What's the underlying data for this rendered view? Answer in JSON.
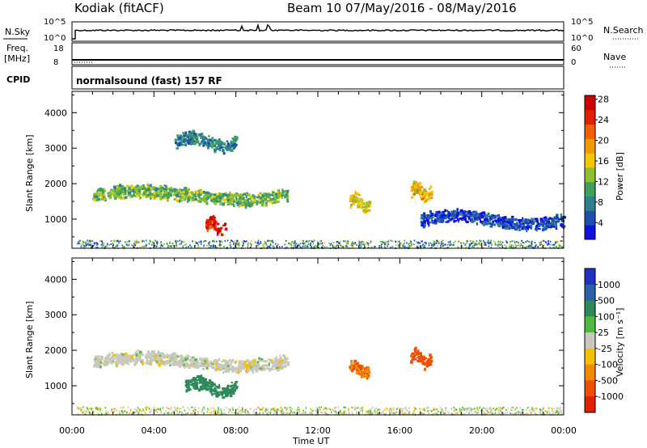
{
  "header": {
    "station": "Kodiak (fitACF)",
    "beam_date": "Beam 10 07/May/2016 - 08/May/2016"
  },
  "top_panels": {
    "nsky_label": "N.Sky",
    "nsearch_label": "N.Search",
    "freq_label_line1": "Freq.",
    "freq_label_line2": "[MHz]",
    "nave_label": "Nave",
    "cpid_label": "CPID",
    "cpid_text": "normalsound (fast) 157 RF",
    "noise_ticks": [
      "10^5",
      "10^0"
    ],
    "freq_ticks": [
      "18",
      "8"
    ],
    "nave_ticks": [
      "60",
      "0"
    ]
  },
  "chart_data": [
    {
      "type": "heatmap",
      "panel": "power",
      "ylabel": "Slant Range [km]",
      "xlabel": "",
      "xlim": [
        "00:00",
        "00:00"
      ],
      "ylim": [
        180,
        4600
      ],
      "y_ticks": [
        1000,
        2000,
        3000,
        4000
      ],
      "colorbar": {
        "label": "Power [dB]",
        "tick_labels": [
          "4",
          "8",
          "12",
          "16",
          "20",
          "24",
          "28"
        ],
        "colors": [
          "#1010e0",
          "#1f4fb0",
          "#2e7f8f",
          "#3f9f5f",
          "#8fbf2f",
          "#f2c800",
          "#f39a00",
          "#f06000",
          "#e02000",
          "#d00000"
        ]
      },
      "features": [
        {
          "x_start": "01:00",
          "x_end": "10:30",
          "y_km": 1700,
          "typical_power_db": 14
        },
        {
          "x_start": "05:00",
          "x_end": "08:00",
          "y_km": 3200,
          "typical_power_db": 10
        },
        {
          "x_start": "06:30",
          "x_end": "07:30",
          "y_km": 850,
          "typical_power_db": 28
        },
        {
          "x_start": "13:30",
          "x_end": "14:30",
          "y_km": 1500,
          "typical_power_db": 18
        },
        {
          "x_start": "16:30",
          "x_end": "17:30",
          "y_km": 1800,
          "typical_power_db": 20
        },
        {
          "x_start": "17:00",
          "x_end": "24:00",
          "y_km": 1000,
          "typical_power_db": 6
        }
      ]
    },
    {
      "type": "heatmap",
      "panel": "velocity",
      "ylabel": "Slant Range [km]",
      "xlabel": "Time UT",
      "x_ticks": [
        "00:00",
        "04:00",
        "08:00",
        "12:00",
        "16:00",
        "20:00",
        "00:00"
      ],
      "ylim": [
        180,
        4600
      ],
      "y_ticks": [
        1000,
        2000,
        3000,
        4000
      ],
      "colorbar": {
        "label": "Velocity [m s⁻¹]",
        "tick_labels": [
          "1000",
          "500",
          "100",
          "25",
          "-25",
          "-100",
          "-500",
          "-1000"
        ],
        "colors": [
          "#2030c0",
          "#2a60a8",
          "#2f8a5a",
          "#4fba3f",
          "#c8c8c0",
          "#f5c000",
          "#f28a00",
          "#ee5000",
          "#e02000"
        ]
      },
      "features": [
        {
          "x_start": "01:00",
          "x_end": "10:30",
          "y_km": 1700,
          "typical_velocity": 0
        },
        {
          "x_start": "05:30",
          "x_end": "08:00",
          "y_km": 1000,
          "typical_velocity": 150
        },
        {
          "x_start": "13:30",
          "x_end": "14:30",
          "y_km": 1500,
          "typical_velocity": -300
        },
        {
          "x_start": "16:30",
          "x_end": "17:30",
          "y_km": 1800,
          "typical_velocity": -500
        }
      ]
    }
  ]
}
